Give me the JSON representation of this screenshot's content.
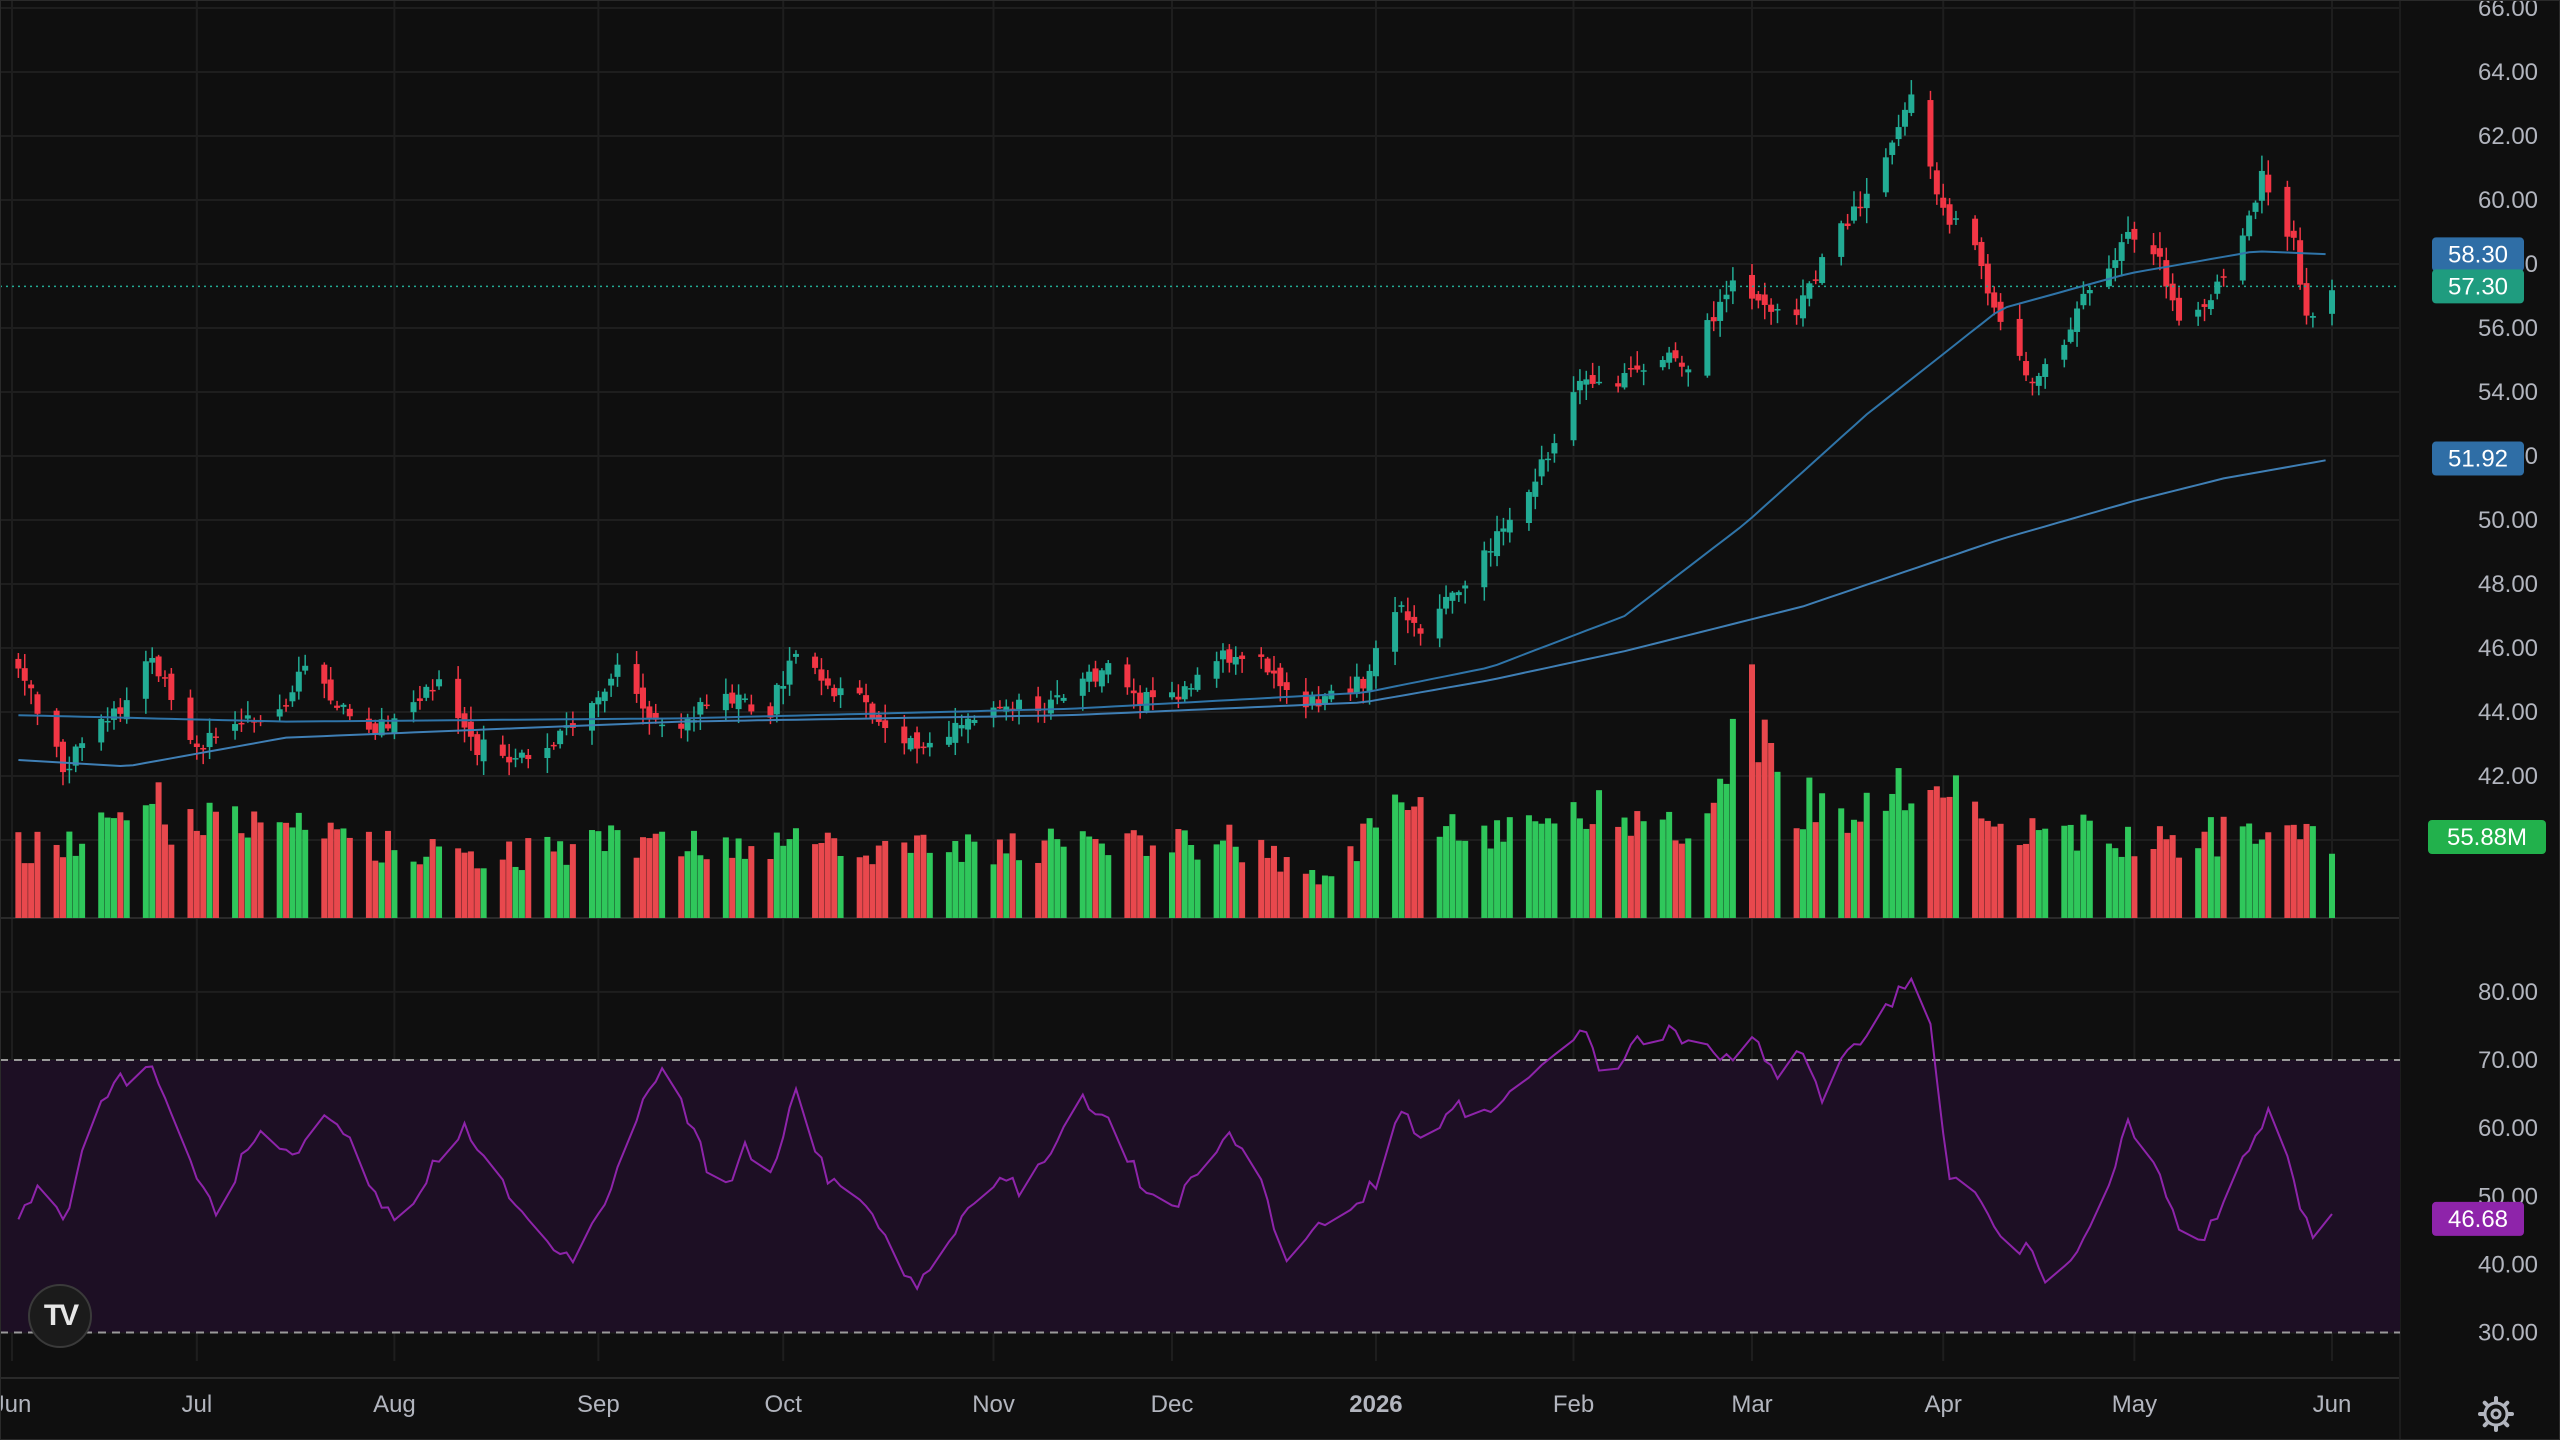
{
  "colors": {
    "background": "#0f0f0f",
    "grid": "#1e1e1e",
    "up": "#22ab94",
    "down": "#f23645",
    "volume_up": "#2fc75b",
    "volume_down": "#e8484d",
    "ma_fast": "#2f74a8",
    "ma_slow": "#3f7fb5",
    "rsi": "#8e24aa",
    "rsi_band": "#1d0f24",
    "axis_text": "#b2b5be"
  },
  "logo": {
    "text": "TV"
  },
  "icons": {
    "settings": "settings-gear-icon"
  },
  "chart_data": [
    {
      "type": "candlestick",
      "title": "",
      "start_date": "2025-06-03",
      "ylim": [
        38.5,
        66.0
      ],
      "y_ticks": [
        "66.00",
        "64.00",
        "62.00",
        "60.00",
        "58.00",
        "56.00",
        "54.00",
        "52.00",
        "50.00",
        "48.00",
        "46.00",
        "44.00",
        "42.00",
        "40.00"
      ],
      "x_ticks": [
        "Jun",
        "Jul",
        "Aug",
        "Sep",
        "Oct",
        "Nov",
        "Dec",
        "2026",
        "Feb",
        "Mar",
        "Apr",
        "May",
        "Jun"
      ],
      "x_tick_dates": [
        "2025-06-02",
        "2025-07-01",
        "2025-08-01",
        "2025-09-02",
        "2025-10-01",
        "2025-11-03",
        "2025-12-01",
        "2026-01-02",
        "2026-02-02",
        "2026-03-02",
        "2026-04-01",
        "2026-05-01",
        "2026-06-01"
      ],
      "bold_ticks": [
        "2026"
      ],
      "close_anchors": [
        [
          "2025-06-03",
          45.3
        ],
        [
          "2025-06-10",
          42.3
        ],
        [
          "2025-06-20",
          44.4
        ],
        [
          "2025-06-24",
          45.7
        ],
        [
          "2025-06-27",
          44.5
        ],
        [
          "2025-06-30",
          42.9
        ],
        [
          "2025-07-03",
          43.3
        ],
        [
          "2025-07-08",
          43.7
        ],
        [
          "2025-07-14",
          44.0
        ],
        [
          "2025-07-18",
          45.7
        ],
        [
          "2025-07-22",
          44.4
        ],
        [
          "2025-07-28",
          43.4
        ],
        [
          "2025-08-04",
          44.3
        ],
        [
          "2025-08-08",
          45.0
        ],
        [
          "2025-08-13",
          43.0
        ],
        [
          "2025-08-19",
          42.6
        ],
        [
          "2025-08-26",
          42.9
        ],
        [
          "2025-09-02",
          44.7
        ],
        [
          "2025-09-05",
          45.2
        ],
        [
          "2025-09-10",
          44.0
        ],
        [
          "2025-09-15",
          43.7
        ],
        [
          "2025-09-22",
          44.6
        ],
        [
          "2025-09-29",
          44.1
        ],
        [
          "2025-10-03",
          45.9
        ],
        [
          "2025-10-08",
          44.6
        ],
        [
          "2025-10-14",
          44.3
        ],
        [
          "2025-10-20",
          43.1
        ],
        [
          "2025-10-24",
          42.9
        ],
        [
          "2025-10-30",
          43.8
        ],
        [
          "2025-11-06",
          44.3
        ],
        [
          "2025-11-12",
          44.2
        ],
        [
          "2025-11-17",
          44.9
        ],
        [
          "2025-11-21",
          45.6
        ],
        [
          "2025-11-26",
          44.4
        ],
        [
          "2025-12-03",
          44.7
        ],
        [
          "2025-12-09",
          45.8
        ],
        [
          "2025-12-15",
          45.5
        ],
        [
          "2025-12-19",
          44.5
        ],
        [
          "2025-12-24",
          44.2
        ],
        [
          "2025-12-31",
          45.0
        ],
        [
          "2026-01-05",
          47.3
        ],
        [
          "2026-01-09",
          46.6
        ],
        [
          "2026-01-15",
          48.0
        ],
        [
          "2026-01-22",
          49.6
        ],
        [
          "2026-01-28",
          51.6
        ],
        [
          "2026-02-03",
          54.5
        ],
        [
          "2026-02-09",
          54.2
        ],
        [
          "2026-02-13",
          54.9
        ],
        [
          "2026-02-20",
          55.0
        ],
        [
          "2026-02-27",
          57.4
        ],
        [
          "2026-03-04",
          56.7
        ],
        [
          "2026-03-09",
          56.3
        ],
        [
          "2026-03-13",
          58.0
        ],
        [
          "2026-03-18",
          59.7
        ],
        [
          "2026-03-24",
          62.0
        ],
        [
          "2026-03-27",
          63.0
        ],
        [
          "2026-04-01",
          59.8
        ],
        [
          "2026-04-06",
          58.4
        ],
        [
          "2026-04-10",
          56.3
        ],
        [
          "2026-04-15",
          54.4
        ],
        [
          "2026-04-20",
          55.6
        ],
        [
          "2026-04-24",
          57.2
        ],
        [
          "2026-04-30",
          59.0
        ],
        [
          "2026-05-05",
          58.0
        ],
        [
          "2026-05-08",
          56.5
        ],
        [
          "2026-05-12",
          56.4
        ],
        [
          "2026-05-18",
          58.8
        ],
        [
          "2026-05-21",
          60.9
        ],
        [
          "2026-05-26",
          58.7
        ],
        [
          "2026-05-28",
          56.4
        ],
        [
          "2026-06-01",
          57.3
        ]
      ],
      "moving_averages": [
        {
          "name": "MA50",
          "last_value": "58.30",
          "points": [
            [
              "2025-06-03",
              43.9
            ],
            [
              "2025-07-15",
              43.7
            ],
            [
              "2025-09-15",
              43.8
            ],
            [
              "2025-11-15",
              44.1
            ],
            [
              "2025-12-31",
              44.6
            ],
            [
              "2026-01-20",
              45.4
            ],
            [
              "2026-02-10",
              47.0
            ],
            [
              "2026-03-01",
              49.9
            ],
            [
              "2026-03-20",
              53.3
            ],
            [
              "2026-04-10",
              56.6
            ],
            [
              "2026-04-30",
              57.7
            ],
            [
              "2026-05-20",
              58.4
            ],
            [
              "2026-06-01",
              58.3
            ]
          ]
        },
        {
          "name": "MA200",
          "last_value": "51.92",
          "points": [
            [
              "2025-06-03",
              42.5
            ],
            [
              "2025-06-20",
              42.3
            ],
            [
              "2025-07-15",
              43.2
            ],
            [
              "2025-09-15",
              43.7
            ],
            [
              "2025-11-15",
              43.9
            ],
            [
              "2025-12-31",
              44.3
            ],
            [
              "2026-01-20",
              45.0
            ],
            [
              "2026-02-10",
              45.9
            ],
            [
              "2026-03-10",
              47.3
            ],
            [
              "2026-04-10",
              49.4
            ],
            [
              "2026-05-01",
              50.6
            ],
            [
              "2026-05-15",
              51.3
            ],
            [
              "2026-06-01",
              51.9
            ]
          ]
        }
      ],
      "last_price": "57.30"
    },
    {
      "type": "bar",
      "name": "Volume",
      "last_value": "55.88M",
      "volume_anchors": [
        [
          "2025-06-03",
          33
        ],
        [
          "2025-06-12",
          36
        ],
        [
          "2025-06-18",
          55
        ],
        [
          "2025-06-24",
          63
        ],
        [
          "2025-06-27",
          45
        ],
        [
          "2025-07-10",
          44
        ],
        [
          "2025-08-01",
          33
        ],
        [
          "2025-08-20",
          30
        ],
        [
          "2025-09-05",
          36
        ],
        [
          "2025-09-30",
          35
        ],
        [
          "2025-10-15",
          33
        ],
        [
          "2025-11-01",
          33
        ],
        [
          "2025-11-20",
          37
        ],
        [
          "2025-12-10",
          37
        ],
        [
          "2025-12-24",
          20
        ],
        [
          "2026-01-05",
          50
        ],
        [
          "2026-01-20",
          42
        ],
        [
          "2026-02-05",
          50
        ],
        [
          "2026-02-20",
          45
        ],
        [
          "2026-03-02",
          100
        ],
        [
          "2026-03-09",
          55
        ],
        [
          "2026-03-20",
          50
        ],
        [
          "2026-03-31",
          70
        ],
        [
          "2026-04-10",
          45
        ],
        [
          "2026-04-20",
          40
        ],
        [
          "2026-05-05",
          38
        ],
        [
          "2026-05-20",
          40
        ],
        [
          "2026-06-01",
          40
        ]
      ],
      "ylim": [
        0,
        110
      ]
    },
    {
      "type": "line",
      "name": "RSI",
      "last_value": "46.68",
      "ylim": [
        27.0,
        83.5
      ],
      "y_ticks": [
        "80.00",
        "70.00",
        "60.00",
        "50.00",
        "40.00",
        "30.00"
      ],
      "bands": [
        30,
        70
      ],
      "rsi_anchors": [
        [
          "2025-06-03",
          47
        ],
        [
          "2025-06-06",
          52
        ],
        [
          "2025-06-10",
          46
        ],
        [
          "2025-06-14",
          60
        ],
        [
          "2025-06-18",
          67
        ],
        [
          "2025-06-24",
          68
        ],
        [
          "2025-06-27",
          63
        ],
        [
          "2025-07-01",
          52
        ],
        [
          "2025-07-04",
          48
        ],
        [
          "2025-07-08",
          55
        ],
        [
          "2025-07-11",
          59
        ],
        [
          "2025-07-16",
          55
        ],
        [
          "2025-07-21",
          61
        ],
        [
          "2025-07-25",
          58
        ],
        [
          "2025-07-29",
          50
        ],
        [
          "2025-08-02",
          45
        ],
        [
          "2025-08-06",
          53
        ],
        [
          "2025-08-12",
          60
        ],
        [
          "2025-08-16",
          56
        ],
        [
          "2025-08-20",
          48
        ],
        [
          "2025-08-25",
          43
        ],
        [
          "2025-08-29",
          41
        ],
        [
          "2025-09-03",
          48
        ],
        [
          "2025-09-08",
          62
        ],
        [
          "2025-09-13",
          70
        ],
        [
          "2025-09-17",
          59
        ],
        [
          "2025-09-21",
          50
        ],
        [
          "2025-09-25",
          57
        ],
        [
          "2025-09-29",
          54
        ],
        [
          "2025-10-03",
          65
        ],
        [
          "2025-10-08",
          52
        ],
        [
          "2025-10-13",
          50
        ],
        [
          "2025-10-18",
          42
        ],
        [
          "2025-10-22",
          37
        ],
        [
          "2025-10-27",
          43
        ],
        [
          "2025-10-31",
          50
        ],
        [
          "2025-11-04",
          53
        ],
        [
          "2025-11-08",
          50
        ],
        [
          "2025-11-12",
          57
        ],
        [
          "2025-11-17",
          65
        ],
        [
          "2025-11-22",
          60
        ],
        [
          "2025-11-27",
          50
        ],
        [
          "2025-12-02",
          49
        ],
        [
          "2025-12-06",
          56
        ],
        [
          "2025-12-10",
          59
        ],
        [
          "2025-12-14",
          55
        ],
        [
          "2025-12-19",
          40
        ],
        [
          "2025-12-24",
          46
        ],
        [
          "2025-12-28",
          47
        ],
        [
          "2026-01-02",
          52
        ],
        [
          "2026-01-06",
          62
        ],
        [
          "2026-01-10",
          58
        ],
        [
          "2026-01-15",
          63
        ],
        [
          "2026-01-20",
          62
        ],
        [
          "2026-01-25",
          66
        ],
        [
          "2026-01-30",
          71
        ],
        [
          "2026-02-03",
          75
        ],
        [
          "2026-02-07",
          67
        ],
        [
          "2026-02-12",
          73
        ],
        [
          "2026-02-17",
          74
        ],
        [
          "2026-02-21",
          72
        ],
        [
          "2026-02-26",
          70
        ],
        [
          "2026-03-02",
          74
        ],
        [
          "2026-03-06",
          68
        ],
        [
          "2026-03-10",
          71
        ],
        [
          "2026-03-13",
          63
        ],
        [
          "2026-03-17",
          71
        ],
        [
          "2026-03-21",
          76
        ],
        [
          "2026-03-25",
          80
        ],
        [
          "2026-03-29",
          82
        ],
        [
          "2026-04-02",
          53
        ],
        [
          "2026-04-06",
          50
        ],
        [
          "2026-04-10",
          44
        ],
        [
          "2026-04-14",
          42
        ],
        [
          "2026-04-18",
          37
        ],
        [
          "2026-04-22",
          43
        ],
        [
          "2026-04-26",
          50
        ],
        [
          "2026-04-30",
          60
        ],
        [
          "2026-05-04",
          55
        ],
        [
          "2026-05-08",
          45
        ],
        [
          "2026-05-12",
          43
        ],
        [
          "2026-05-16",
          52
        ],
        [
          "2026-05-20",
          58
        ],
        [
          "2026-05-23",
          65
        ],
        [
          "2026-05-26",
          52
        ],
        [
          "2026-05-29",
          43
        ],
        [
          "2026-06-01",
          46.68
        ]
      ]
    }
  ]
}
